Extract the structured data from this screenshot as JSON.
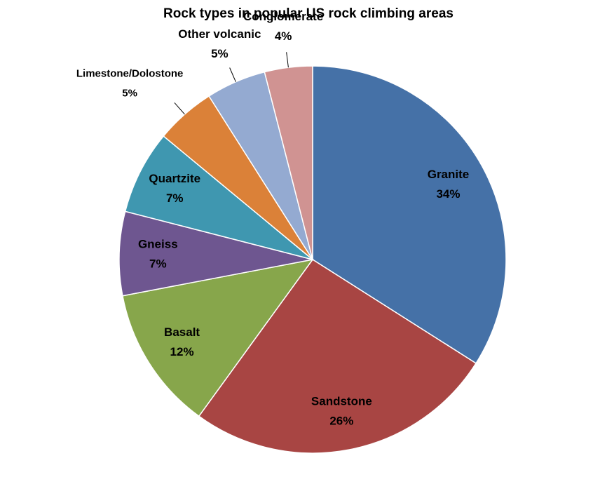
{
  "chart_data": {
    "type": "pie",
    "title": "Rock types in popular US rock climbing areas",
    "categories": [
      "Granite",
      "Sandstone",
      "Basalt",
      "Gneiss",
      "Quartzite",
      "Limestone/Dolostone",
      "Other volcanic",
      "Conglomerate"
    ],
    "values": [
      34,
      26,
      12,
      7,
      7,
      5,
      5,
      4
    ],
    "value_labels": [
      "34%",
      "26%",
      "12%",
      "7%",
      "7%",
      "5%",
      "5%",
      "4%"
    ],
    "colors": [
      "#4571a7",
      "#a84543",
      "#87a64b",
      "#6e5690",
      "#3f97b0",
      "#db8138",
      "#94aad1",
      "#d09392"
    ]
  }
}
